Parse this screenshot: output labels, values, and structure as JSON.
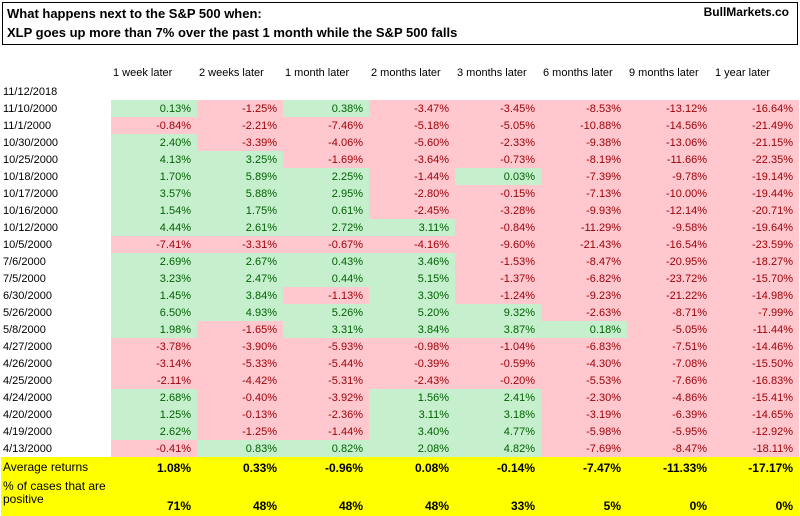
{
  "header": {
    "title_line1": "What happens next to the S&P 500 when:",
    "title_line2": "XLP goes up more than 7% over the past 1 month while the S&P 500 falls",
    "brand": "BullMarkets.co"
  },
  "chart_data": {
    "type": "table",
    "title": "What happens next to the S&P 500 when: XLP goes up more than 7% over the past 1 month while the S&P 500 falls",
    "note_date": "11/12/2018",
    "columns": [
      "1 week later",
      "2 weeks later",
      "1 month later",
      "2 months later",
      "3 months later",
      "6 months later",
      "9 months later",
      "1 year later"
    ],
    "rows": [
      {
        "date": "11/10/2000",
        "values": [
          "0.13%",
          "-1.25%",
          "0.38%",
          "-3.47%",
          "-3.45%",
          "-8.53%",
          "-13.12%",
          "-16.64%"
        ]
      },
      {
        "date": "11/1/2000",
        "values": [
          "-0.84%",
          "-2.21%",
          "-7.46%",
          "-5.18%",
          "-5.05%",
          "-10.88%",
          "-14.56%",
          "-21.49%"
        ]
      },
      {
        "date": "10/30/2000",
        "values": [
          "2.40%",
          "-3.39%",
          "-4.06%",
          "-5.60%",
          "-2.33%",
          "-9.38%",
          "-13.06%",
          "-21.15%"
        ]
      },
      {
        "date": "10/25/2000",
        "values": [
          "4.13%",
          "3.25%",
          "-1.69%",
          "-3.64%",
          "-0.73%",
          "-8.19%",
          "-11.66%",
          "-22.35%"
        ]
      },
      {
        "date": "10/18/2000",
        "values": [
          "1.70%",
          "5.89%",
          "2.25%",
          "-1.44%",
          "0.03%",
          "-7.39%",
          "-9.78%",
          "-19.14%"
        ]
      },
      {
        "date": "10/17/2000",
        "values": [
          "3.57%",
          "5.88%",
          "2.95%",
          "-2.80%",
          "-0.15%",
          "-7.13%",
          "-10.00%",
          "-19.44%"
        ]
      },
      {
        "date": "10/16/2000",
        "values": [
          "1.54%",
          "1.75%",
          "0.61%",
          "-2.45%",
          "-3.28%",
          "-9.93%",
          "-12.14%",
          "-20.71%"
        ]
      },
      {
        "date": "10/12/2000",
        "values": [
          "4.44%",
          "2.61%",
          "2.72%",
          "3.11%",
          "-0.84%",
          "-11.29%",
          "-9.58%",
          "-19.64%"
        ]
      },
      {
        "date": "10/5/2000",
        "values": [
          "-7.41%",
          "-3.31%",
          "-0.67%",
          "-4.16%",
          "-9.60%",
          "-21.43%",
          "-16.54%",
          "-23.59%"
        ]
      },
      {
        "date": "7/6/2000",
        "values": [
          "2.69%",
          "2.67%",
          "0.43%",
          "3.46%",
          "-1.53%",
          "-8.47%",
          "-20.95%",
          "-18.27%"
        ]
      },
      {
        "date": "7/5/2000",
        "values": [
          "3.23%",
          "2.47%",
          "0.44%",
          "5.15%",
          "-1.37%",
          "-6.82%",
          "-23.72%",
          "-15.70%"
        ]
      },
      {
        "date": "6/30/2000",
        "values": [
          "1.45%",
          "3.84%",
          "-1.13%",
          "3.30%",
          "-1.24%",
          "-9.23%",
          "-21.22%",
          "-14.98%"
        ]
      },
      {
        "date": "5/26/2000",
        "values": [
          "6.50%",
          "4.93%",
          "5.26%",
          "5.20%",
          "9.32%",
          "-2.63%",
          "-8.71%",
          "-7.99%"
        ]
      },
      {
        "date": "5/8/2000",
        "values": [
          "1.98%",
          "-1.65%",
          "3.31%",
          "3.84%",
          "3.87%",
          "0.18%",
          "-5.05%",
          "-11.44%"
        ]
      },
      {
        "date": "4/27/2000",
        "values": [
          "-3.78%",
          "-3.90%",
          "-5.93%",
          "-0.98%",
          "-1.04%",
          "-6.83%",
          "-7.51%",
          "-14.46%"
        ]
      },
      {
        "date": "4/26/2000",
        "values": [
          "-3.14%",
          "-5.33%",
          "-5.44%",
          "-0.39%",
          "-0.59%",
          "-4.30%",
          "-7.08%",
          "-15.50%"
        ]
      },
      {
        "date": "4/25/2000",
        "values": [
          "-2.11%",
          "-4.42%",
          "-5.31%",
          "-2.43%",
          "-0.20%",
          "-5.53%",
          "-7.66%",
          "-16.83%"
        ]
      },
      {
        "date": "4/24/2000",
        "values": [
          "2.68%",
          "-0.40%",
          "-3.92%",
          "1.56%",
          "2.41%",
          "-2.30%",
          "-4.86%",
          "-15.41%"
        ]
      },
      {
        "date": "4/20/2000",
        "values": [
          "1.25%",
          "-0.13%",
          "-2.36%",
          "3.11%",
          "3.18%",
          "-3.19%",
          "-6.39%",
          "-14.65%"
        ]
      },
      {
        "date": "4/19/2000",
        "values": [
          "2.62%",
          "-1.25%",
          "-1.44%",
          "3.40%",
          "4.77%",
          "-5.98%",
          "-5.95%",
          "-12.92%"
        ]
      },
      {
        "date": "4/13/2000",
        "values": [
          "-0.41%",
          "0.83%",
          "0.82%",
          "2.08%",
          "4.82%",
          "-7.69%",
          "-8.47%",
          "-18.11%"
        ]
      }
    ],
    "summary": {
      "avg_label": "Average returns",
      "avg_values": [
        "1.08%",
        "0.33%",
        "-0.96%",
        "0.08%",
        "-0.14%",
        "-7.47%",
        "-11.33%",
        "-17.17%"
      ],
      "pct_label": "% of cases that are positive",
      "pct_values": [
        "71%",
        "48%",
        "48%",
        "48%",
        "33%",
        "5%",
        "0%",
        "0%"
      ]
    }
  },
  "colors": {
    "positive_bg": "#c6efce",
    "positive_text": "#006100",
    "negative_bg": "#ffc7ce",
    "negative_text": "#9c0006",
    "summary_bg": "#ffff00"
  }
}
